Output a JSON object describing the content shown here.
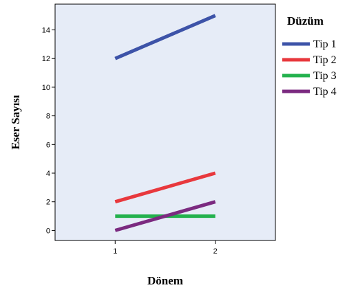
{
  "chart_data": {
    "type": "line",
    "xlabel": "Dönem",
    "ylabel": "Eser Sayısı",
    "x": [
      1,
      2
    ],
    "xticks": [
      "1",
      "2"
    ],
    "yticks": [
      0,
      2,
      4,
      6,
      8,
      10,
      12,
      14
    ],
    "ylim": [
      -0.7,
      15.8
    ],
    "xlim": [
      0.4,
      2.6
    ],
    "grid": false,
    "legend": {
      "title": "Düzüm",
      "placement": "right"
    },
    "series": [
      {
        "name": "Tip 1",
        "values": [
          12,
          15
        ],
        "color": "#3d53a8"
      },
      {
        "name": "Tip 2",
        "values": [
          2,
          4
        ],
        "color": "#e8383d"
      },
      {
        "name": "Tip 3",
        "values": [
          1,
          1
        ],
        "color": "#23b14d"
      },
      {
        "name": "Tip 4",
        "values": [
          0,
          2
        ],
        "color": "#7b2a80"
      }
    ],
    "plot_background": "#e6ecf7"
  }
}
